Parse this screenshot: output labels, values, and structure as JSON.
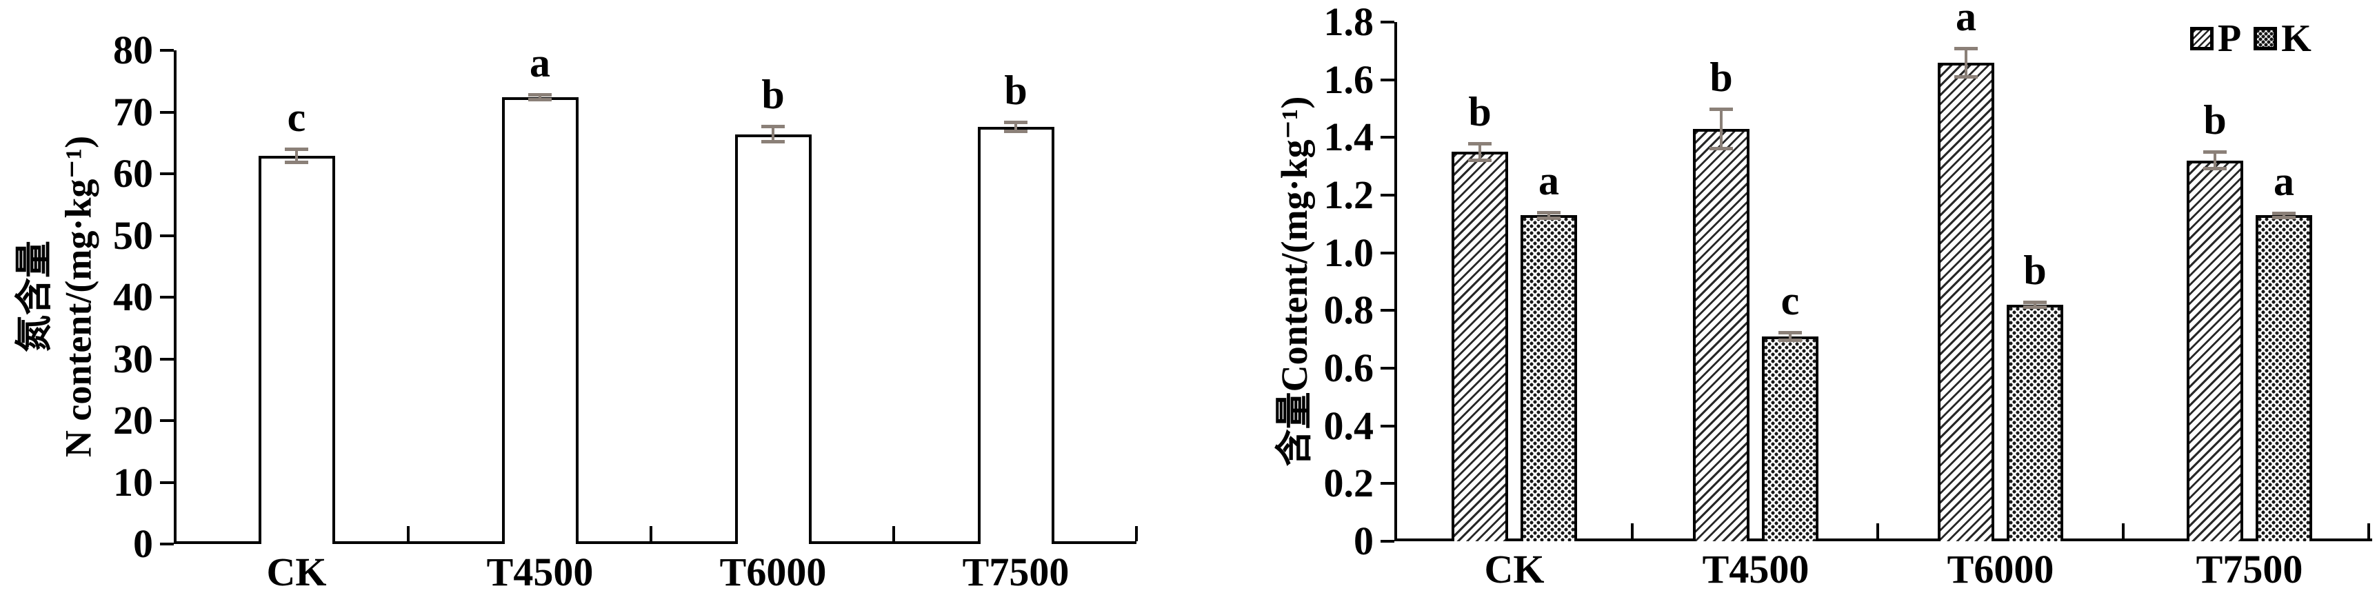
{
  "page": {
    "background": "#ffffff"
  },
  "colors": {
    "axis": "#000000",
    "bar_outline": "#000000",
    "bar_fill": "#ffffff",
    "error_bar": "#8b8078",
    "text": "#000000"
  },
  "chart_data": [
    {
      "type": "bar",
      "title": "",
      "categories": [
        "CK",
        "T4500",
        "T6000",
        "T7500"
      ],
      "series": [
        {
          "name": "N",
          "pattern": "plain-white",
          "values": [
            62.9,
            72.4,
            66.4,
            67.6
          ],
          "errors": [
            1.1,
            0.5,
            1.3,
            0.8
          ],
          "sig_letters": [
            "c",
            "a",
            "b",
            "b"
          ]
        }
      ],
      "ylabel_line1": "氮含量",
      "ylabel_line2": "N content/(mg·kg⁻¹)",
      "xlabel": "",
      "ylim": [
        0,
        80
      ],
      "ytick_step": 10,
      "ytick_labels": [
        "0",
        "10",
        "20",
        "30",
        "40",
        "50",
        "60",
        "70",
        "80"
      ],
      "grid": false,
      "legend_position": "none"
    },
    {
      "type": "bar",
      "title": "",
      "categories": [
        "CK",
        "T4500",
        "T6000",
        "T7500"
      ],
      "series": [
        {
          "name": "P",
          "pattern": "diagonal-hatch",
          "values": [
            1.35,
            1.43,
            1.66,
            1.32
          ],
          "errors": [
            0.03,
            0.07,
            0.05,
            0.03
          ],
          "sig_letters": [
            "b",
            "b",
            "a",
            "b"
          ]
        },
        {
          "name": "K",
          "pattern": "dot-grid",
          "values": [
            1.13,
            0.71,
            0.82,
            1.13
          ],
          "errors": [
            0.01,
            0.015,
            0.01,
            0.008
          ],
          "sig_letters": [
            "a",
            "c",
            "b",
            "a"
          ]
        }
      ],
      "ylabel": "含量Content/(mg·kg⁻¹)",
      "xlabel": "",
      "ylim": [
        0,
        1.8
      ],
      "ytick_step": 0.2,
      "ytick_labels": [
        "0",
        "0.2",
        "0.4",
        "0.6",
        "0.8",
        "1.0",
        "1.2",
        "1.4",
        "1.6",
        "1.8"
      ],
      "grid": false,
      "legend_position": "top-right"
    }
  ]
}
